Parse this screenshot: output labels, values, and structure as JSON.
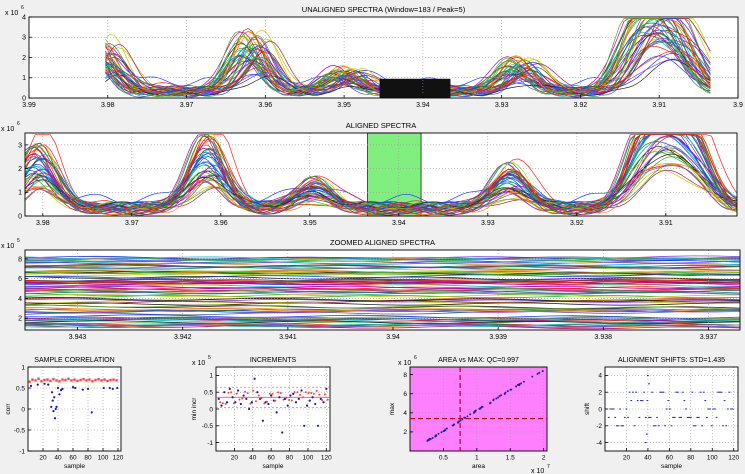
{
  "chart_data": [
    {
      "type": "line",
      "title": "UNALIGNED SPECTRA (Window=183 / Peak=5)",
      "exponent_label": "x 10",
      "exponent_power": "6",
      "xlim": [
        3.99,
        3.9
      ],
      "ylim": [
        0,
        4
      ],
      "xticks": [
        "3.99",
        "3.98",
        "3.97",
        "3.96",
        "3.95",
        "3.94",
        "3.93",
        "3.92",
        "3.91",
        "3.9"
      ],
      "yticks": [
        "0",
        "1",
        "2",
        "3",
        "4"
      ],
      "grid": true,
      "peaks": [
        {
          "x": 3.9805,
          "h": 0.28
        },
        {
          "x": 3.9615,
          "h": 0.32
        },
        {
          "x": 3.9495,
          "h": 0.12
        },
        {
          "x": 3.9275,
          "h": 0.18
        },
        {
          "x": 3.9125,
          "h": 0.3
        },
        {
          "x": 3.9095,
          "h": 0.36
        },
        {
          "x": 3.9065,
          "h": 0.24
        }
      ],
      "series_count": 120
    },
    {
      "type": "line",
      "title": "ALIGNED SPECTRA",
      "exponent_label": "x 10",
      "exponent_power": "6",
      "xlim": [
        3.982,
        3.902
      ],
      "ylim": [
        0,
        3.5
      ],
      "xticks": [
        "3.98",
        "3.97",
        "3.96",
        "3.95",
        "3.94",
        "3.93",
        "3.92",
        "3.91"
      ],
      "yticks": [
        "0",
        "1",
        "2",
        "3"
      ],
      "grid": true,
      "highlight_range": [
        3.9435,
        3.9375
      ],
      "highlight_color": "#80ef80",
      "series_count": 120
    },
    {
      "type": "line",
      "title": "ZOOMED ALIGNED SPECTRA",
      "exponent_label": "x 10",
      "exponent_power": "5",
      "xlim": [
        3.9435,
        3.9367
      ],
      "ylim": [
        0.8,
        8.9
      ],
      "xticks": [
        "3.943",
        "3.942",
        "3.941",
        "3.94",
        "3.939",
        "3.938",
        "3.937"
      ],
      "yticks": [
        "2",
        "4",
        "6",
        "8"
      ],
      "grid": true,
      "series_count": 120
    },
    {
      "type": "scatter",
      "title": "SAMPLE CORRELATION",
      "xlabel": "sample",
      "ylabel": "corr",
      "xlim": [
        0,
        124
      ],
      "ylim": [
        -1,
        1
      ],
      "xticks": [
        "20",
        "40",
        "60",
        "80",
        "100",
        "120"
      ],
      "yticks": [
        "-1",
        "-0.5",
        "0",
        "0.5",
        "1"
      ],
      "series": [
        {
          "name": "",
          "color": "#1a1aa0",
          "x": [
            4,
            13,
            22,
            27,
            31,
            32,
            33,
            34,
            35,
            36,
            37,
            38,
            40,
            42,
            44,
            46,
            60,
            63,
            73,
            80,
            85,
            101,
            109,
            113,
            119
          ],
          "y": [
            0.55,
            0.58,
            0.6,
            0.58,
            0.05,
            0.4,
            0.2,
            -0.05,
            0.28,
            -0.22,
            0.0,
            0.05,
            0.5,
            0.35,
            0.45,
            0.48,
            0.52,
            0.5,
            0.46,
            0.48,
            -0.08,
            0.5,
            0.5,
            0.48,
            0.5
          ]
        }
      ],
      "band": {
        "color": "#ff4040",
        "y_values": [
          0.65,
          0.7,
          0.68,
          0.72,
          0.66,
          0.69,
          0.7,
          0.67,
          0.71,
          0.68,
          0.66,
          0.7,
          0.69,
          0.72,
          0.68,
          0.7,
          0.67,
          0.69,
          0.71,
          0.68,
          0.7,
          0.66,
          0.69,
          0.71,
          0.68,
          0.7,
          0.67,
          0.69,
          0.7,
          0.68
        ]
      }
    },
    {
      "type": "scatter",
      "title": "INCREMENTS",
      "exponent_label": "x 10",
      "exponent_power": "5",
      "xlabel": "sample",
      "ylabel": "min incr",
      "xlim": [
        0,
        124
      ],
      "ylim": [
        -1.25,
        1.25
      ],
      "xticks": [
        "20",
        "40",
        "60",
        "80",
        "100",
        "120"
      ],
      "yticks": [
        "-1",
        "-0.5",
        "0",
        "0.5",
        "1"
      ],
      "series": [
        {
          "name": "",
          "color": "#1a1aa0",
          "x": [
            3,
            6,
            9,
            12,
            15,
            18,
            21,
            24,
            27,
            30,
            33,
            36,
            39,
            42,
            45,
            48,
            51,
            54,
            57,
            60,
            63,
            66,
            69,
            72,
            75,
            78,
            81,
            84,
            87,
            90,
            93,
            96,
            99,
            102,
            105,
            108,
            111,
            114,
            117,
            120
          ],
          "y": [
            0.3,
            0.1,
            0.5,
            0.2,
            0.6,
            0.35,
            0.2,
            0.55,
            0.15,
            0.4,
            0.3,
            0.0,
            0.2,
            0.9,
            0.5,
            0.3,
            -0.35,
            0.2,
            0.15,
            0.4,
            0.25,
            -0.1,
            0.35,
            -0.7,
            0.3,
            0.1,
            0.4,
            0.45,
            0.2,
            0.3,
            0.55,
            -0.5,
            0.1,
            0.25,
            0.35,
            0.15,
            -0.5,
            0.3,
            0.2,
            0.6
          ]
        }
      ],
      "mean_line": 0.35,
      "band_lines": [
        0.05,
        0.65
      ]
    },
    {
      "type": "scatter",
      "title": "AREA vs MAX: QC=0.997",
      "xlabel": "area",
      "ylabel": "max",
      "exponent_label_x": "x 10",
      "exponent_power_x": "7",
      "exponent_label_y": "x 10",
      "exponent_power_y": "6",
      "background": "#ff80ff",
      "xlim": [
        0,
        2.05
      ],
      "ylim": [
        0,
        8.8
      ],
      "xticks": [
        "0.5",
        "1",
        "1.5",
        "2"
      ],
      "yticks": [
        "2",
        "4",
        "6",
        "8"
      ],
      "vline": 0.75,
      "hline": 3.4,
      "line": {
        "x": [
          0.25,
          2.0
        ],
        "y": [
          1.05,
          8.5
        ]
      }
    },
    {
      "type": "scatter",
      "title": "ALIGNMENT SHIFTS: STD=1.435",
      "xlabel": "sample",
      "ylabel": "shift",
      "xlim": [
        0,
        124
      ],
      "ylim": [
        -5,
        5
      ],
      "xticks": [
        "20",
        "40",
        "60",
        "80",
        "100",
        "120"
      ],
      "yticks": [
        "-4",
        "-2",
        "0",
        "2",
        "4"
      ],
      "levels": [
        2,
        1,
        0,
        -1,
        -2
      ],
      "extra": [
        {
          "x": 40,
          "y": 4
        },
        {
          "x": 41,
          "y": 3
        },
        {
          "x": 38,
          "y": -4
        },
        {
          "x": 39,
          "y": -3
        }
      ]
    }
  ]
}
